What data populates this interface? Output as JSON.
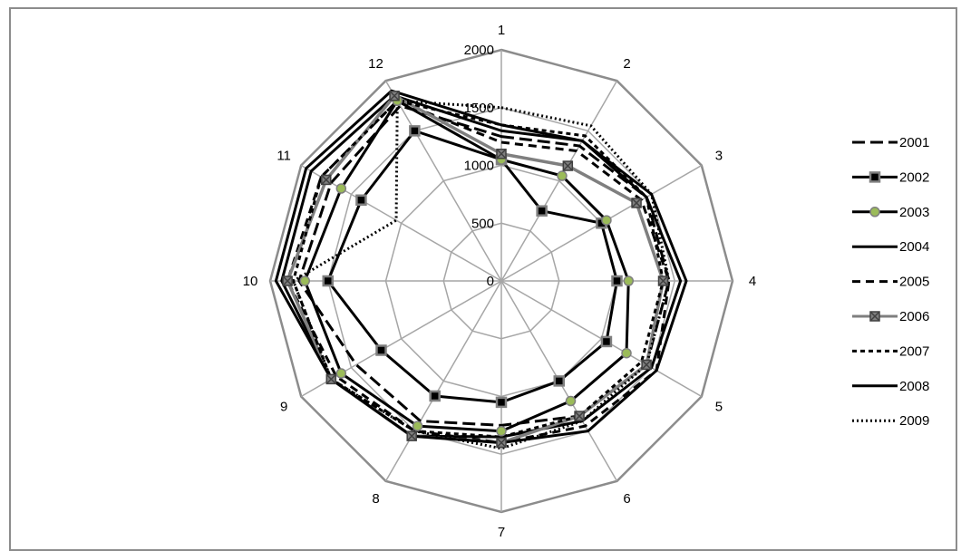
{
  "chart_data": {
    "type": "radar",
    "title": "",
    "categories": [
      "1",
      "2",
      "3",
      "4",
      "5",
      "6",
      "7",
      "8",
      "9",
      "10",
      "11",
      "12"
    ],
    "rlim": [
      0,
      2000
    ],
    "ticks": [
      0,
      500,
      1000,
      1500,
      2000
    ],
    "tick_labels": [
      "0",
      "500",
      "1000",
      "1500",
      "2000"
    ],
    "grid": true,
    "legend_position": "right",
    "series": [
      {
        "name": "2001",
        "style": "long-dash",
        "color": "#000000",
        "marker": "none",
        "values": [
          1250,
          1350,
          1450,
          1450,
          1450,
          1350,
          1250,
          1400,
          1450,
          1750,
          1700,
          1750
        ]
      },
      {
        "name": "2002",
        "style": "solid",
        "color": "#000000",
        "marker": "square",
        "marker_color": "#000000",
        "marker_border": "#7f7f7f",
        "values": [
          1050,
          700,
          1000,
          1000,
          1050,
          1000,
          1050,
          1150,
          1200,
          1500,
          1400,
          1500
        ]
      },
      {
        "name": "2003",
        "style": "solid",
        "color": "#000000",
        "marker": "circle",
        "marker_color": "#9bbb59",
        "marker_border": "#7f7f7f",
        "values": [
          1050,
          1050,
          1050,
          1100,
          1250,
          1200,
          1300,
          1450,
          1600,
          1700,
          1600,
          1800
        ]
      },
      {
        "name": "2004",
        "style": "solid",
        "color": "#000000",
        "marker": "none",
        "values": [
          1300,
          1400,
          1450,
          1550,
          1500,
          1400,
          1350,
          1550,
          1700,
          1900,
          1900,
          1850
        ]
      },
      {
        "name": "2005",
        "style": "dash",
        "color": "#000000",
        "marker": "none",
        "values": [
          1200,
          1300,
          1400,
          1450,
          1550,
          1450,
          1400,
          1500,
          1650,
          1850,
          1800,
          1800
        ]
      },
      {
        "name": "2006",
        "style": "solid",
        "color": "#7f7f7f",
        "marker": "x-square",
        "marker_color": "#7f7f7f",
        "marker_border": "#404040",
        "values": [
          1100,
          1150,
          1350,
          1400,
          1450,
          1350,
          1400,
          1550,
          1700,
          1850,
          1750,
          1850
        ]
      },
      {
        "name": "2007",
        "style": "short-dash",
        "color": "#000000",
        "marker": "none",
        "values": [
          1350,
          1450,
          1450,
          1400,
          1400,
          1350,
          1350,
          1500,
          1700,
          1800,
          1800,
          1800
        ]
      },
      {
        "name": "2008",
        "style": "solid",
        "color": "#000000",
        "marker": "none",
        "values": [
          1350,
          1400,
          1500,
          1600,
          1550,
          1500,
          1400,
          1550,
          1700,
          1950,
          1950,
          1900
        ]
      },
      {
        "name": "2009",
        "style": "dot",
        "color": "#000000",
        "marker": "none",
        "values": [
          1500,
          1550,
          1500,
          1450,
          1450,
          1400,
          1450,
          1500,
          1700,
          1800,
          1050,
          1800
        ]
      }
    ]
  }
}
